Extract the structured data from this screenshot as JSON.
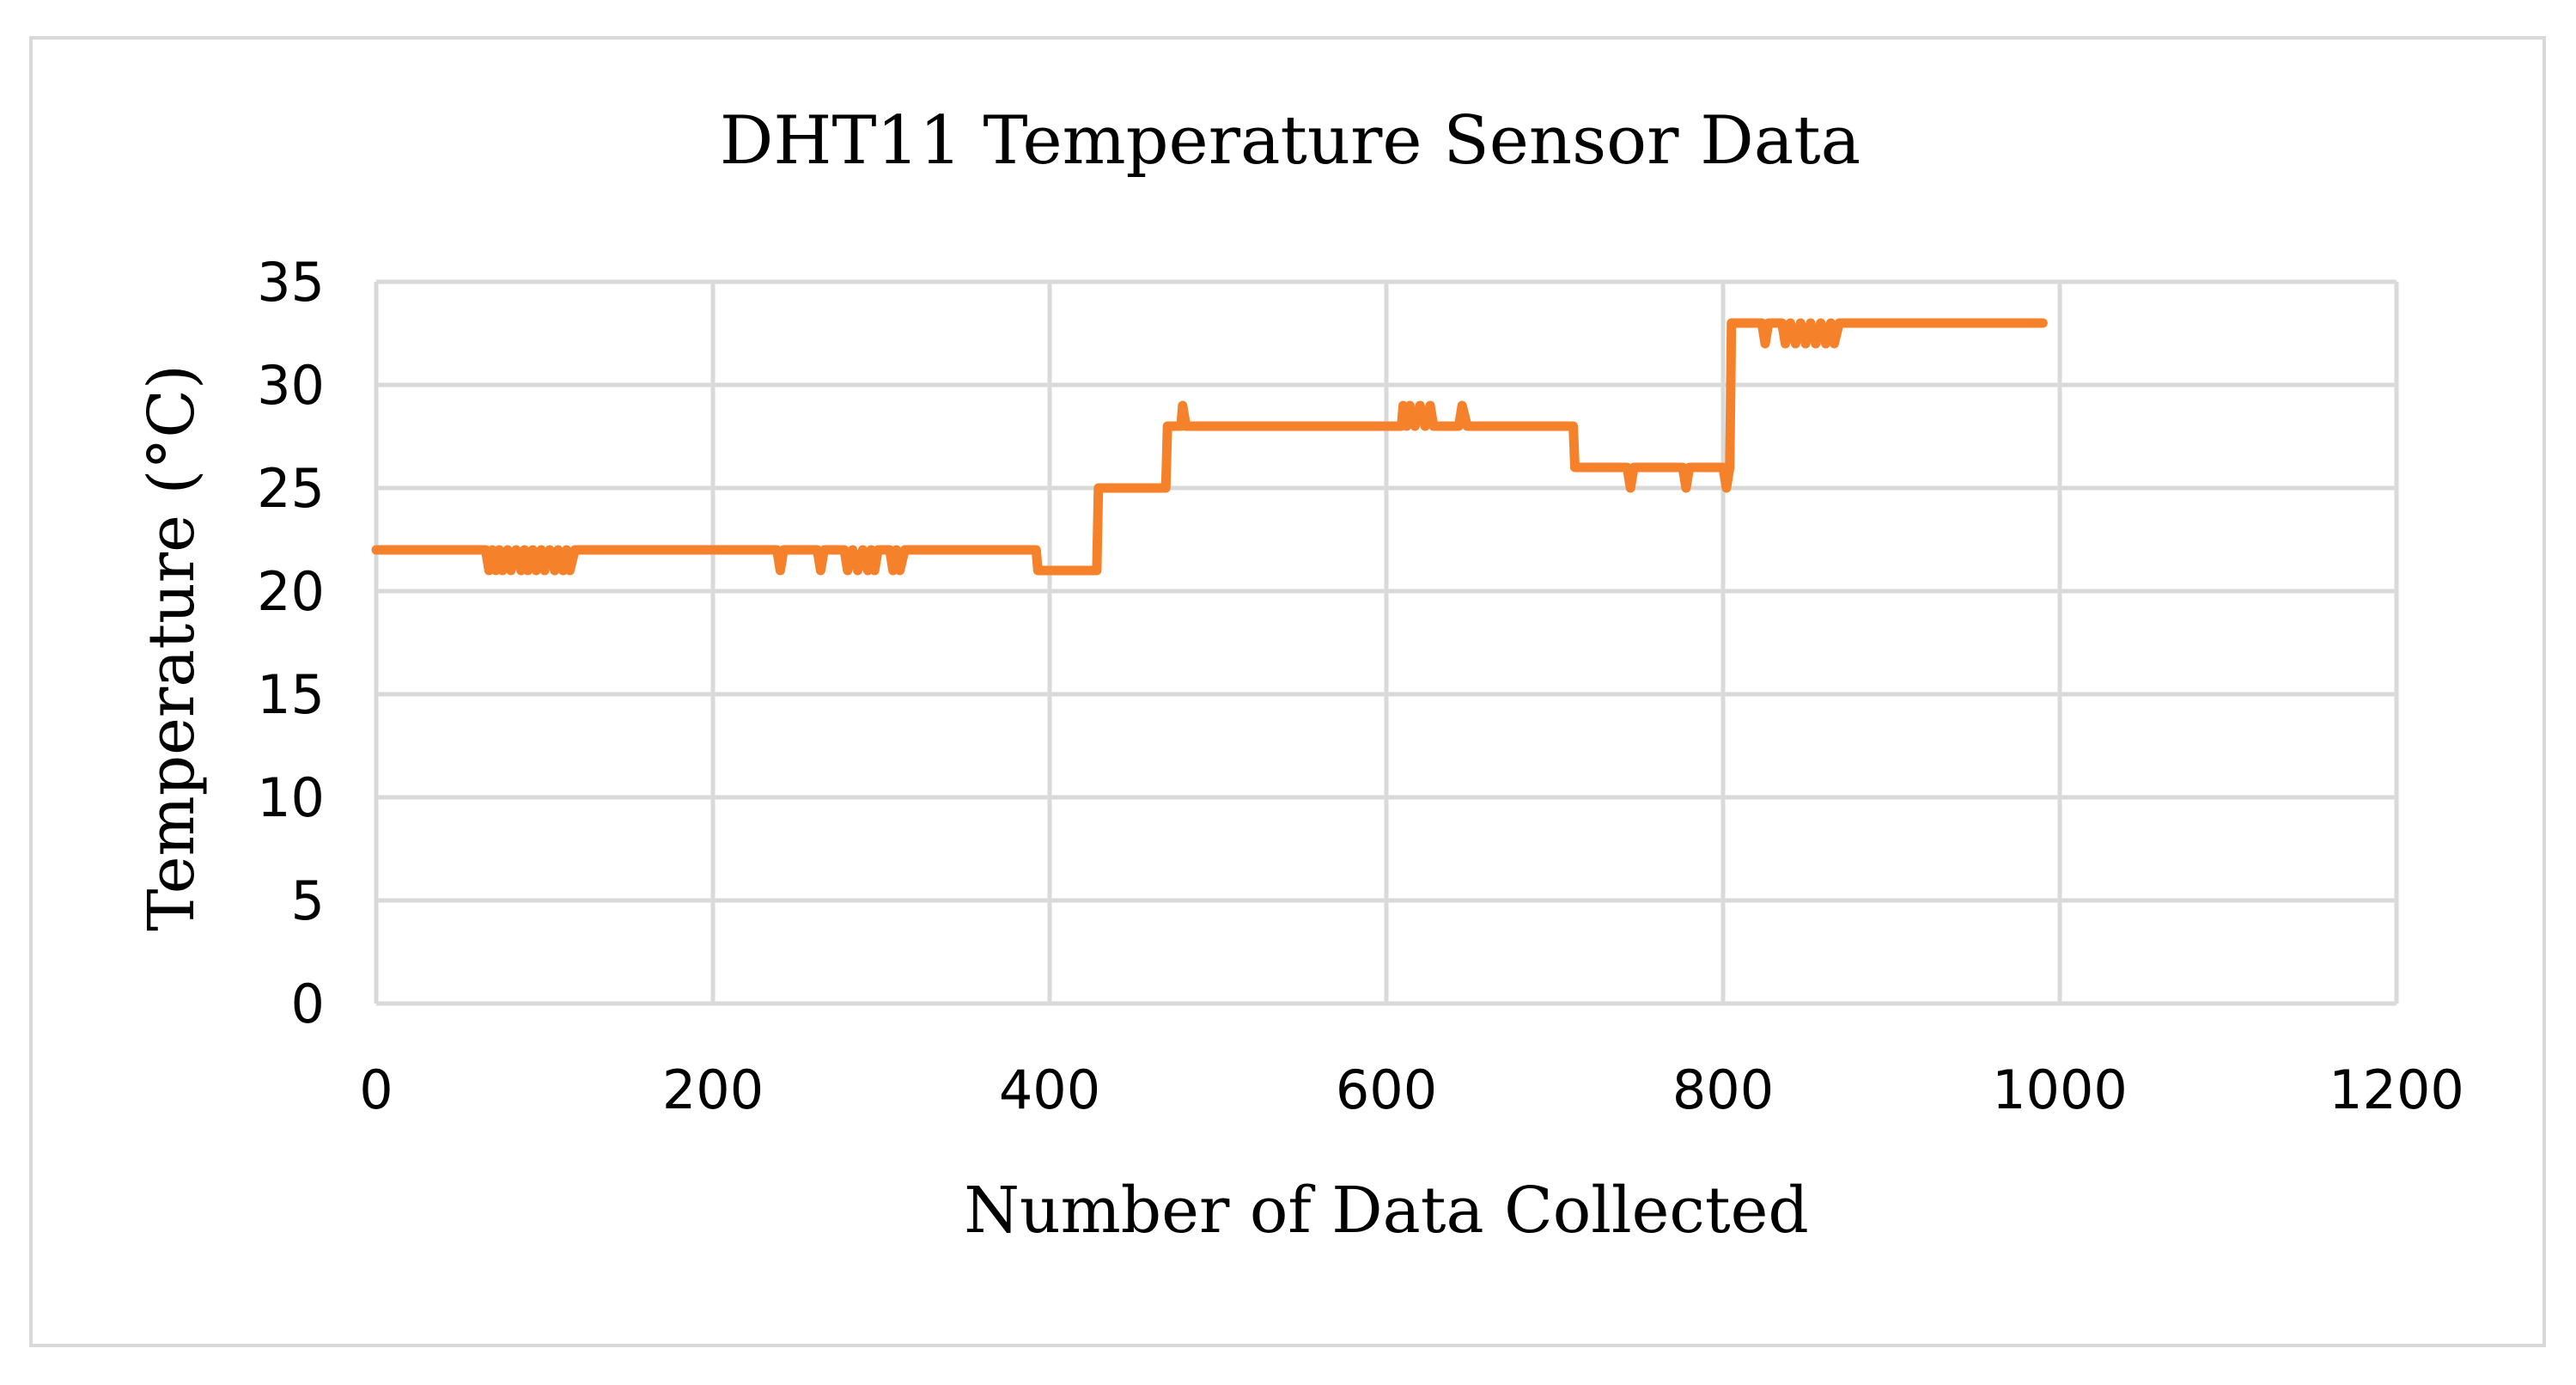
{
  "chart_data": {
    "type": "line",
    "title": "DHT11 Temperature Sensor Data",
    "xlabel": "Number of Data Collected",
    "ylabel": "Temperature (°C)",
    "xlim": [
      0,
      1200
    ],
    "ylim": [
      0,
      35
    ],
    "xticks": [
      "0",
      "200",
      "400",
      "600",
      "800",
      "1000",
      "1200"
    ],
    "yticks": [
      "0",
      "5",
      "10",
      "15",
      "20",
      "25",
      "30",
      "35"
    ],
    "grid": true,
    "legend": "none",
    "series": [
      {
        "color": "#f5822a",
        "points": [
          [
            0,
            22
          ],
          [
            65,
            22
          ],
          [
            67,
            21
          ],
          [
            69,
            22
          ],
          [
            71,
            21
          ],
          [
            73,
            22
          ],
          [
            75,
            21
          ],
          [
            78,
            22
          ],
          [
            80,
            21
          ],
          [
            83,
            22
          ],
          [
            86,
            21
          ],
          [
            88,
            22
          ],
          [
            90,
            21
          ],
          [
            93,
            22
          ],
          [
            95,
            21
          ],
          [
            98,
            22
          ],
          [
            100,
            21
          ],
          [
            103,
            22
          ],
          [
            106,
            21
          ],
          [
            108,
            22
          ],
          [
            111,
            21
          ],
          [
            113,
            22
          ],
          [
            115,
            21
          ],
          [
            118,
            22
          ],
          [
            238,
            22
          ],
          [
            240,
            21
          ],
          [
            242,
            22
          ],
          [
            262,
            22
          ],
          [
            264,
            21
          ],
          [
            266,
            22
          ],
          [
            278,
            22
          ],
          [
            280,
            21
          ],
          [
            283,
            22
          ],
          [
            286,
            21
          ],
          [
            289,
            22
          ],
          [
            292,
            21
          ],
          [
            294,
            22
          ],
          [
            296,
            21
          ],
          [
            298,
            22
          ],
          [
            305,
            22
          ],
          [
            307,
            21
          ],
          [
            309,
            22
          ],
          [
            311,
            21
          ],
          [
            314,
            22
          ],
          [
            392,
            22
          ],
          [
            393,
            21
          ],
          [
            428,
            21
          ],
          [
            429,
            25
          ],
          [
            469,
            25
          ],
          [
            470,
            28
          ],
          [
            478,
            28
          ],
          [
            479,
            29
          ],
          [
            481,
            28
          ],
          [
            609,
            28
          ],
          [
            610,
            29
          ],
          [
            612,
            28
          ],
          [
            614,
            29
          ],
          [
            617,
            28
          ],
          [
            620,
            29
          ],
          [
            623,
            28
          ],
          [
            626,
            29
          ],
          [
            628,
            28
          ],
          [
            643,
            28
          ],
          [
            645,
            29
          ],
          [
            648,
            28
          ],
          [
            711,
            28
          ],
          [
            712,
            26
          ],
          [
            743,
            26
          ],
          [
            745,
            25
          ],
          [
            747,
            26
          ],
          [
            776,
            26
          ],
          [
            778,
            25
          ],
          [
            780,
            26
          ],
          [
            800,
            26
          ],
          [
            802,
            25
          ],
          [
            804,
            26
          ],
          [
            805,
            33
          ],
          [
            823,
            33
          ],
          [
            825,
            32
          ],
          [
            827,
            33
          ],
          [
            835,
            33
          ],
          [
            837,
            32
          ],
          [
            840,
            33
          ],
          [
            843,
            32
          ],
          [
            846,
            33
          ],
          [
            849,
            32
          ],
          [
            852,
            33
          ],
          [
            855,
            32
          ],
          [
            858,
            33
          ],
          [
            861,
            32
          ],
          [
            864,
            33
          ],
          [
            866,
            32
          ],
          [
            869,
            33
          ],
          [
            990,
            33
          ]
        ]
      }
    ]
  }
}
